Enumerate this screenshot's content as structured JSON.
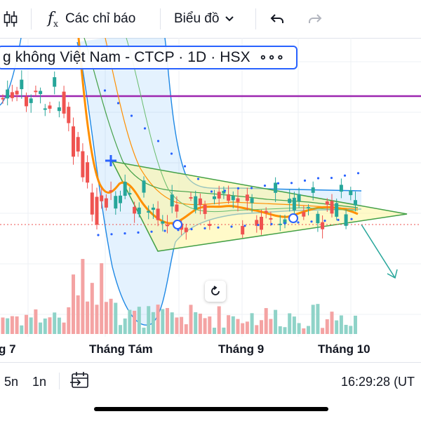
{
  "toolbar": {
    "indicators_label": "Các chỉ báo",
    "chart_type_label": "Biểu đồ"
  },
  "symbol": {
    "title": "g không Việt Nam - CTCP · 1D · HSX",
    "more": "∘∘∘"
  },
  "x_axis": {
    "labels": [
      "g 7",
      "Tháng Tám",
      "Tháng 9",
      "Tháng 10"
    ]
  },
  "bottom_bar": {
    "range_5n": "5n",
    "range_1n": "1n",
    "clock": "16:29:28 (UT"
  },
  "colors": {
    "up": "#26a69a",
    "down": "#ef5350",
    "up_volume": "#8fd3c8",
    "down_volume": "#f4a3a3",
    "accent": "#2962ff",
    "horizontal_line": "#9c27b0",
    "triangle_fill": "#fff59d",
    "triangle_stroke": "#43a047",
    "bollinger_band": "#1e88e5",
    "ma_orange": "#ff8f00",
    "ma_green": "#43a047",
    "price_line": "#ef5350"
  },
  "chart_data": {
    "type": "candlestick",
    "interval": "1D",
    "exchange": "HSX",
    "x_tick_labels": [
      "g 7",
      "Tháng Tám",
      "Tháng 9",
      "Tháng 10"
    ],
    "y_axis": "not shown",
    "drawings": [
      "horizontal line",
      "triangle pattern",
      "trend arrow down",
      "Bollinger bands",
      "moving averages",
      "parabolic SAR"
    ],
    "grid": true,
    "volume_pane": true
  }
}
